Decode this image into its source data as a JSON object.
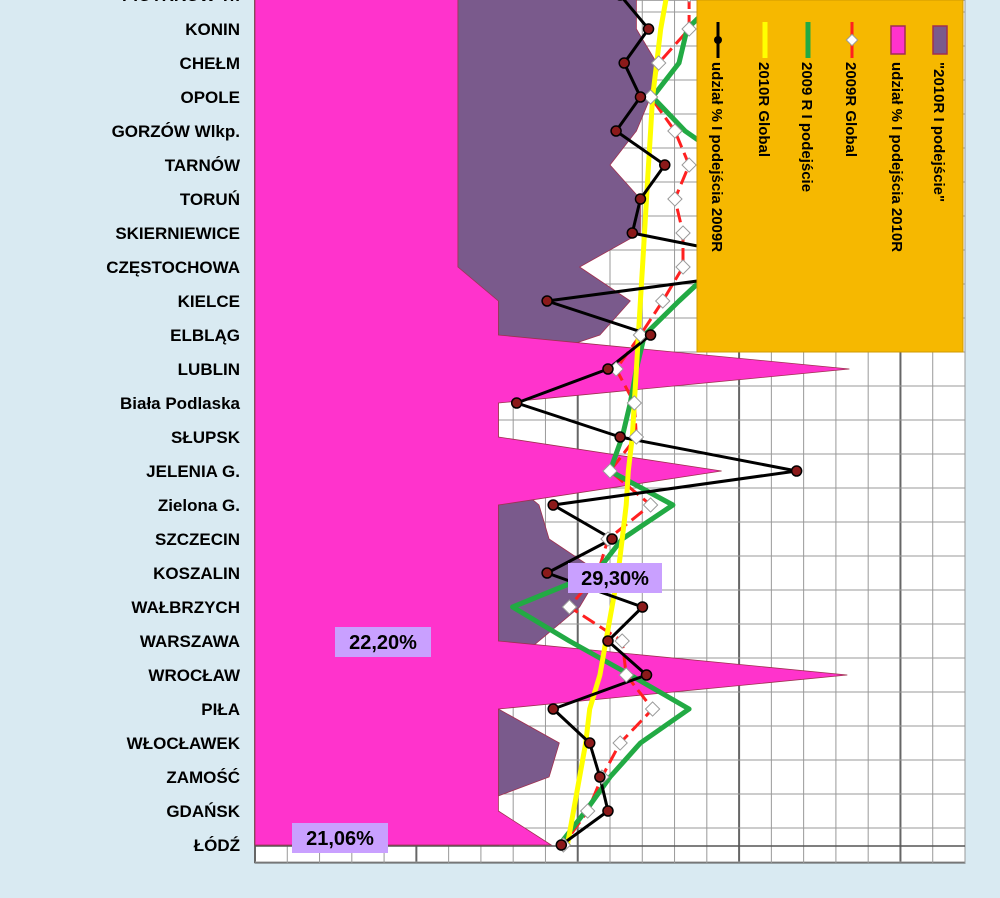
{
  "chart_data": {
    "type": "line",
    "orientation": "horizontal-categories",
    "categories": [
      "PIOTRKÓW Tr.",
      "KONIN",
      "CHEŁM",
      "OPOLE",
      "GORZÓW Wlkp.",
      "TARNÓW",
      "TORUŃ",
      "SKIERNIEWICE",
      "CZĘSTOCHOWA",
      "KIELCE",
      "ELBLĄG",
      "LUBLIN",
      "Biała Podlaska",
      "SŁUPSK",
      "JELENIA G.",
      "Zielona G.",
      "SZCZECIN",
      "KOSZALIN",
      "WAŁBRZYCH",
      "WARSZAWA",
      "WROCŁAW",
      "PIŁA",
      "WŁOCŁAWEK",
      "ZAMOŚĆ",
      "GDAŃSK",
      "ŁÓDŹ"
    ],
    "x_unit": "percent",
    "xlim": [
      15,
      50
    ],
    "grid": true,
    "legend_position": "top-right",
    "series": [
      {
        "name": "\"2010R I podejście\"",
        "render": "area",
        "color": "#7a5a8c",
        "values": [
          33.8,
          33.8,
          34.8,
          34.5,
          33.8,
          32.5,
          34.0,
          34.0,
          31.0,
          33.5,
          32.0,
          27.0,
          27.0,
          27.0,
          27.0,
          29.0,
          29.5,
          32.0,
          31.0,
          29.0,
          27.0,
          27.0,
          30.0,
          29.5,
          25.0,
          27.0
        ]
      },
      {
        "name": "udział % I podejścia 2010R",
        "render": "area",
        "color": "#ff33cc",
        "values": [
          25.0,
          25.0,
          25.0,
          25.0,
          25.0,
          25.0,
          25.0,
          25.0,
          25.0,
          27.0,
          27.0,
          44.3,
          27.0,
          27.0,
          38.0,
          27.0,
          27.0,
          27.0,
          27.0,
          27.0,
          44.2,
          27.0,
          27.0,
          27.0,
          27.0,
          29.6
        ]
      },
      {
        "name": "2009R Global",
        "render": "line-markers",
        "color": "#ff2020",
        "values": [
          36.4,
          36.4,
          34.9,
          34.5,
          35.7,
          36.4,
          35.7,
          36.1,
          36.1,
          35.1,
          34.0,
          32.8,
          33.7,
          33.8,
          32.5,
          34.5,
          32.4,
          31.9,
          30.5,
          33.1,
          33.3,
          34.6,
          33.0,
          32.1,
          31.4,
          30.2
        ]
      },
      {
        "name": "2009 R I podejście",
        "render": "line",
        "color": "#22aa44",
        "values": [
          38.0,
          36.3,
          35.9,
          34.6,
          36.2,
          38.6,
          37.4,
          37.1,
          37.7,
          35.9,
          34.2,
          33.8,
          33.5,
          33.1,
          32.5,
          35.6,
          33.1,
          31.8,
          27.7,
          30.5,
          33.5,
          36.4,
          34.0,
          32.5,
          31.3,
          30.0
        ]
      },
      {
        "name": "2010R Global",
        "render": "line",
        "color": "#ffff00",
        "values": [
          35.3,
          35.0,
          34.8,
          34.6,
          34.5,
          34.4,
          34.3,
          34.2,
          34.1,
          34.0,
          33.9,
          33.8,
          33.7,
          33.6,
          33.4,
          33.3,
          33.1,
          32.9,
          32.6,
          32.3,
          32.0,
          31.5,
          31.3,
          31.0,
          30.7,
          30.4
        ]
      },
      {
        "name": "udział % I podejścia 2009R",
        "render": "line-markers",
        "color": "#000000",
        "values": [
          33.0,
          34.4,
          33.2,
          34.0,
          32.8,
          35.2,
          34.0,
          33.6,
          42.0,
          29.4,
          34.5,
          32.4,
          27.9,
          33.0,
          41.7,
          29.7,
          32.6,
          29.4,
          34.1,
          32.4,
          34.3,
          29.7,
          31.5,
          32.0,
          32.4,
          30.1
        ]
      }
    ],
    "annotations": [
      "29,30%",
      "22,20%",
      "21,06%"
    ]
  }
}
